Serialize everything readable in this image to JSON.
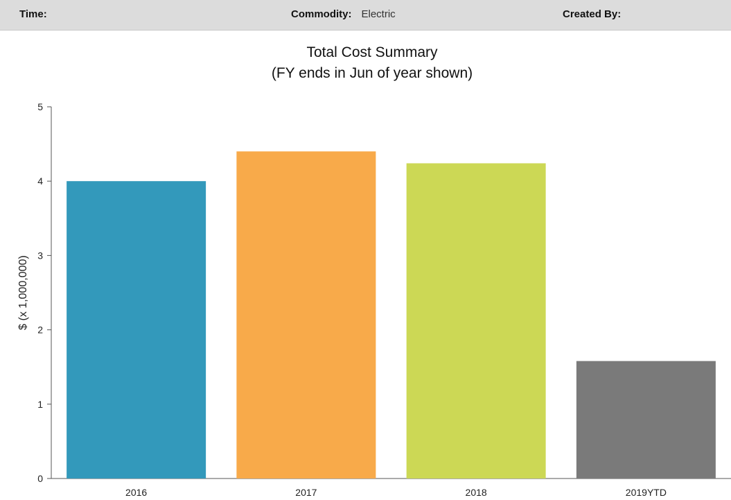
{
  "filters": {
    "time_label": "Time:",
    "commodity_label": "Commodity:",
    "commodity_value": "Electric",
    "created_by_label": "Created By:"
  },
  "chart_data": {
    "type": "bar",
    "title": "Total Cost Summary",
    "subtitle": "(FY ends in Jun of year shown)",
    "xlabel": "",
    "ylabel": "$ (x 1,000,000)",
    "ylim": [
      0,
      5
    ],
    "yticks": [
      "0",
      "1",
      "2",
      "3",
      "4",
      "5"
    ],
    "grid": false,
    "legend": "none",
    "categories": [
      "2016",
      "2017",
      "2018",
      "2019YTD"
    ],
    "values": [
      4.0,
      4.4,
      4.24,
      1.58
    ],
    "colors": [
      "#3399bb",
      "#f8aa4a",
      "#ccd855",
      "#7a7a7a"
    ]
  }
}
